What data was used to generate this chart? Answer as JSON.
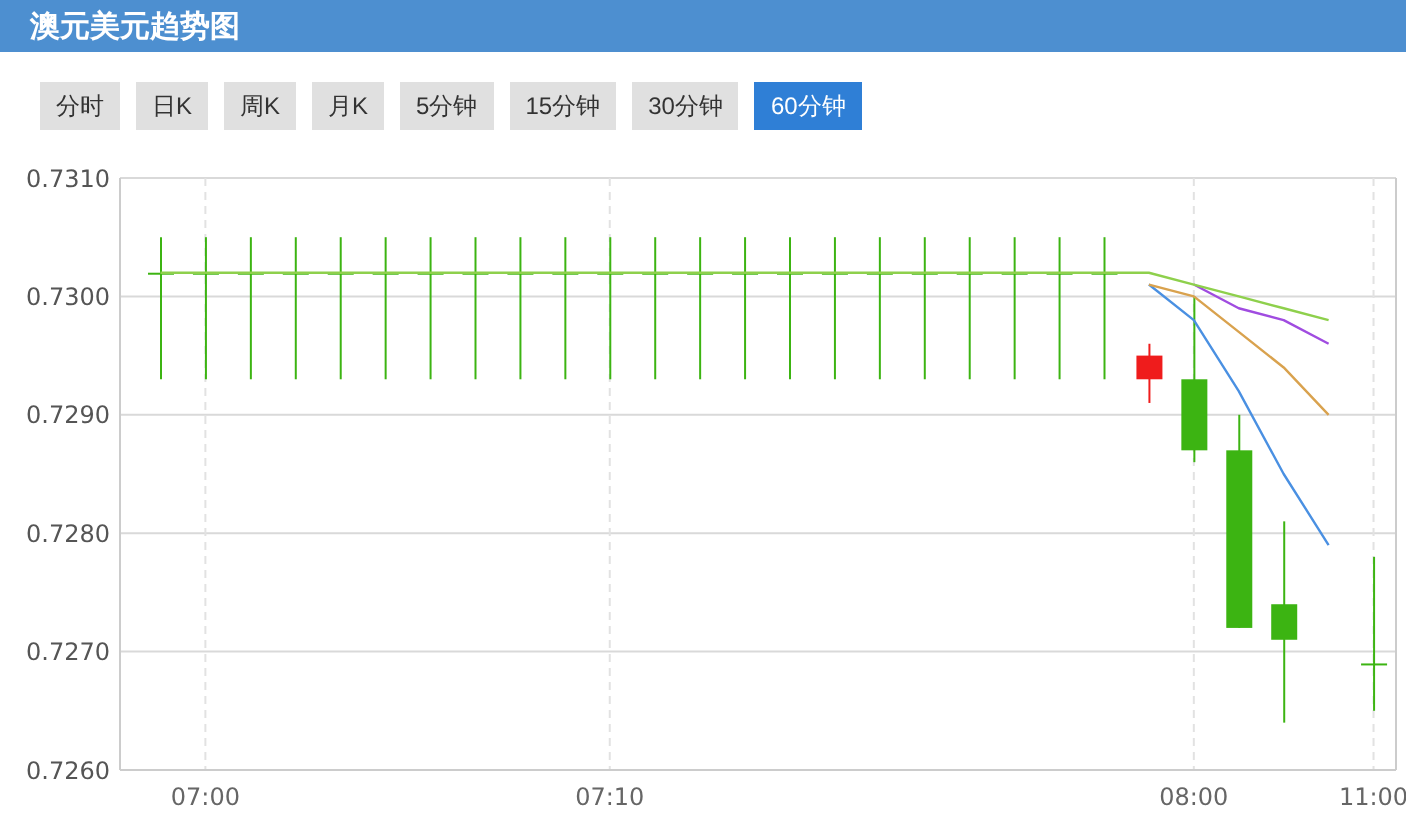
{
  "chart_data": {
    "type": "candlestick",
    "title": "澳元美元趋势图",
    "annotations": [
      "分时",
      "日K",
      "周K",
      "月K",
      "5分钟",
      "15分钟",
      "30分钟",
      "60分钟"
    ],
    "categories": [
      null,
      "07:00",
      null,
      null,
      null,
      null,
      null,
      null,
      null,
      null,
      "07:10",
      null,
      null,
      null,
      null,
      null,
      null,
      null,
      null,
      null,
      null,
      null,
      null,
      "08:00",
      null,
      null,
      null,
      "11:00"
    ],
    "ohlc": [
      [
        0.7302,
        0.7305,
        0.7293,
        0.7302
      ],
      [
        0.7302,
        0.7305,
        0.7293,
        0.7302
      ],
      [
        0.7302,
        0.7305,
        0.7293,
        0.7302
      ],
      [
        0.7302,
        0.7305,
        0.7293,
        0.7302
      ],
      [
        0.7302,
        0.7305,
        0.7293,
        0.7302
      ],
      [
        0.7302,
        0.7305,
        0.7293,
        0.7302
      ],
      [
        0.7302,
        0.7305,
        0.7293,
        0.7302
      ],
      [
        0.7302,
        0.7305,
        0.7293,
        0.7302
      ],
      [
        0.7302,
        0.7305,
        0.7293,
        0.7302
      ],
      [
        0.7302,
        0.7305,
        0.7293,
        0.7302
      ],
      [
        0.7302,
        0.7305,
        0.7293,
        0.7302
      ],
      [
        0.7302,
        0.7305,
        0.7293,
        0.7302
      ],
      [
        0.7302,
        0.7305,
        0.7293,
        0.7302
      ],
      [
        0.7302,
        0.7305,
        0.7293,
        0.7302
      ],
      [
        0.7302,
        0.7305,
        0.7293,
        0.7302
      ],
      [
        0.7302,
        0.7305,
        0.7293,
        0.7302
      ],
      [
        0.7302,
        0.7305,
        0.7293,
        0.7302
      ],
      [
        0.7302,
        0.7305,
        0.7293,
        0.7302
      ],
      [
        0.7302,
        0.7305,
        0.7293,
        0.7302
      ],
      [
        0.7302,
        0.7305,
        0.7293,
        0.7302
      ],
      [
        0.7302,
        0.7305,
        0.7293,
        0.7302
      ],
      [
        0.7302,
        0.7305,
        0.7293,
        0.7302
      ],
      [
        0.7293,
        0.7296,
        0.7291,
        0.7295
      ],
      [
        0.7293,
        0.73,
        0.7286,
        0.7287
      ],
      [
        0.7287,
        0.729,
        0.7272,
        0.7272
      ],
      [
        0.7274,
        0.7281,
        0.7264,
        0.7271
      ],
      null,
      [
        0.7269,
        0.7278,
        0.7265,
        0.7269
      ]
    ],
    "colors": [
      "#3cb412",
      "#3cb412",
      "#3cb412",
      "#3cb412",
      "#3cb412",
      "#3cb412",
      "#3cb412",
      "#3cb412",
      "#3cb412",
      "#3cb412",
      "#3cb412",
      "#3cb412",
      "#3cb412",
      "#3cb412",
      "#3cb412",
      "#3cb412",
      "#3cb412",
      "#3cb412",
      "#3cb412",
      "#3cb412",
      "#3cb412",
      "#3cb412",
      "#ef1c1c",
      "#3cb412",
      "#3cb412",
      "#3cb412",
      null,
      "#3cb412"
    ],
    "series": [
      {
        "type": "line",
        "color": "#4a90e2",
        "values": [
          null,
          null,
          null,
          null,
          null,
          null,
          null,
          null,
          null,
          null,
          null,
          null,
          null,
          null,
          null,
          null,
          null,
          null,
          null,
          null,
          null,
          null,
          0.7301,
          0.7298,
          0.7292,
          0.7285,
          0.7279,
          null
        ]
      },
      {
        "type": "line",
        "color": "#d9a24e",
        "values": [
          null,
          null,
          null,
          null,
          null,
          null,
          null,
          null,
          null,
          null,
          null,
          null,
          null,
          null,
          null,
          null,
          null,
          null,
          null,
          null,
          null,
          null,
          0.7301,
          0.73,
          0.7297,
          0.7294,
          0.729,
          null
        ]
      },
      {
        "type": "line",
        "color": "#a04ce0",
        "values": [
          null,
          null,
          null,
          null,
          null,
          null,
          null,
          null,
          null,
          null,
          null,
          null,
          null,
          null,
          null,
          null,
          null,
          null,
          null,
          null,
          null,
          null,
          null,
          0.7301,
          0.7299,
          0.7298,
          0.7296,
          null
        ]
      },
      {
        "type": "line",
        "color": "#8ed04c",
        "values": [
          0.7302,
          0.7302,
          0.7302,
          0.7302,
          0.7302,
          0.7302,
          0.7302,
          0.7302,
          0.7302,
          0.7302,
          0.7302,
          0.7302,
          0.7302,
          0.7302,
          0.7302,
          0.7302,
          0.7302,
          0.7302,
          0.7302,
          0.7302,
          0.7302,
          0.7302,
          0.7302,
          0.7301,
          0.73,
          0.7299,
          0.7298,
          null
        ]
      }
    ],
    "ylim": [
      0.726,
      0.731
    ],
    "yticks": [
      {
        "value": 0.726,
        "label": "0.7260"
      },
      {
        "value": 0.727,
        "label": "0.7270"
      },
      {
        "value": 0.728,
        "label": "0.7280"
      },
      {
        "value": 0.729,
        "label": "0.7290"
      },
      {
        "value": 0.73,
        "label": "0.7300"
      },
      {
        "value": 0.731,
        "label": "0.7310"
      }
    ],
    "grid": true
  }
}
